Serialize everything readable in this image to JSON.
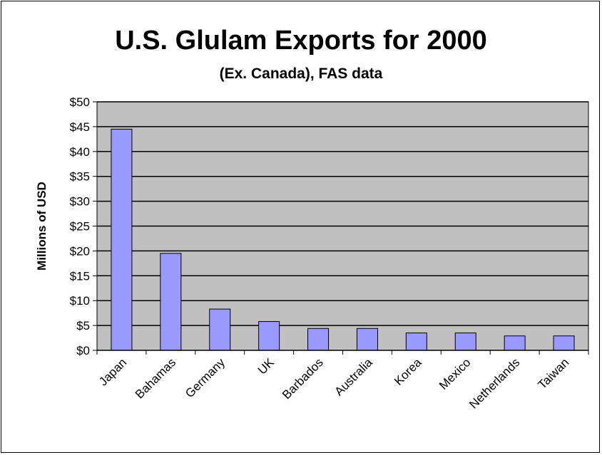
{
  "chart_data": {
    "type": "bar",
    "title": "U.S. Glulam Exports for 2000",
    "subtitle": "(Ex. Canada), FAS data",
    "xlabel": "",
    "ylabel": "Millions of USD",
    "categories": [
      "Japan",
      "Bahamas",
      "Germany",
      "UK",
      "Barbados",
      "Australia",
      "Korea",
      "Mexico",
      "Netherlands",
      "Taiwan"
    ],
    "values": [
      44.5,
      19.5,
      8.3,
      5.8,
      4.4,
      4.4,
      3.5,
      3.5,
      2.9,
      2.9
    ],
    "ylim": [
      0,
      50
    ],
    "yticks": [
      0,
      5,
      10,
      15,
      20,
      25,
      30,
      35,
      40,
      45,
      50
    ],
    "ytick_labels": [
      "$0",
      "$5",
      "$10",
      "$15",
      "$20",
      "$25",
      "$30",
      "$35",
      "$40",
      "$45",
      "$50"
    ],
    "grid": true,
    "legend": "none",
    "colors": {
      "bar_fill": "#9999ff",
      "plot_background": "#c0c0c0",
      "gridline": "#000000"
    }
  }
}
